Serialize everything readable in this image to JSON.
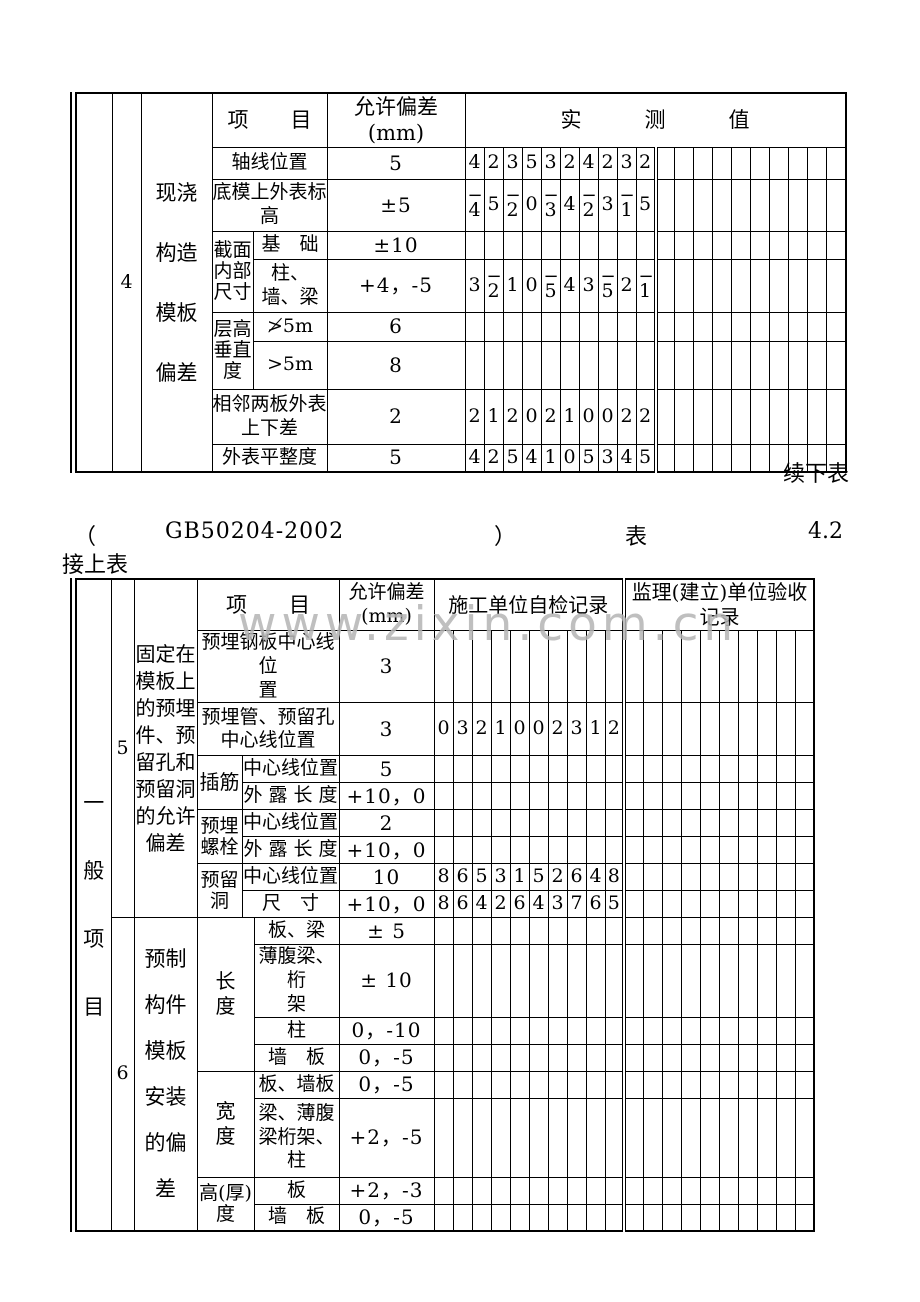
{
  "watermark": "www.zixin.com.cn",
  "between": {
    "continue_below": "续下表",
    "bracket_open": "（",
    "standard": "GB50204-2002",
    "bracket_close": "）",
    "table_word": "表",
    "table_no": "4.2",
    "continue_above": "接上表"
  },
  "top_table": {
    "row_no": "4",
    "category_lines": [
      "现浇",
      "构造",
      "模板",
      "偏差"
    ],
    "header": {
      "item": "项　　目",
      "allow": "允许偏差(mm)",
      "measured": "实　　　测　　　值"
    },
    "rows": [
      {
        "label": "轴线位置",
        "allow": "5",
        "measured": [
          "4",
          "2",
          "3",
          "5",
          "3",
          "2",
          "4",
          "2",
          "3",
          "2"
        ]
      },
      {
        "label": [
          "底模上外表标",
          "高"
        ],
        "allow": "±5",
        "measured": [
          "-4",
          "5",
          "-2",
          "0",
          "-3",
          "4",
          "-2",
          "3",
          "-1",
          "5"
        ]
      },
      {
        "group": [
          "截面",
          "内部",
          "尺寸"
        ],
        "label": "基　础",
        "allow": "±10",
        "measured": []
      },
      {
        "label": "柱、墙、梁",
        "allow": "+4，-5",
        "measured": [
          "3",
          "-2",
          "1",
          "0",
          "-5",
          "4",
          "3",
          "-5",
          "2",
          "-1"
        ]
      },
      {
        "group": [
          "层高",
          "垂直",
          "度"
        ],
        "label": "≯5m",
        "allow": "6",
        "measured": []
      },
      {
        "label": ">5m",
        "allow": "8",
        "measured": []
      },
      {
        "label": [
          "相邻两板外表",
          "上下差"
        ],
        "allow": "2",
        "measured": [
          "2",
          "1",
          "2",
          "0",
          "2",
          "1",
          "0",
          "0",
          "2",
          "2"
        ]
      },
      {
        "label": "外表平整度",
        "allow": "5",
        "measured": [
          "4",
          "2",
          "5",
          "4",
          "1",
          "0",
          "5",
          "3",
          "4",
          "5"
        ]
      }
    ]
  },
  "bottom_table": {
    "side_label_chars": [
      "一",
      "般",
      "项",
      "目"
    ],
    "header": {
      "item": "项　　目",
      "allow": "允许偏差(mm)",
      "self": "施工单位自检记录",
      "supervisor": [
        "监理(建立)单位验收",
        "记录"
      ]
    },
    "sections": [
      {
        "no": "5",
        "category_lines": [
          "固定在",
          "模板上",
          "的预埋",
          "件、预",
          "留孔和",
          "预留洞",
          "的允许",
          "偏差"
        ],
        "rows": [
          {
            "item": [
              "预埋钢板中心线位",
              "置"
            ],
            "allow": "3",
            "self": []
          },
          {
            "item": [
              "预埋管、预留孔",
              "中心线位置"
            ],
            "allow": "3",
            "self": [
              "0",
              "3",
              "2",
              "1",
              "0",
              "0",
              "2",
              "3",
              "1",
              "2"
            ]
          },
          {
            "group": "插筋",
            "sub": "中心线位置",
            "allow": "5",
            "self": []
          },
          {
            "sub": "外 露 长 度",
            "allow": "+10，0",
            "self": []
          },
          {
            "group": [
              "预埋",
              "螺栓"
            ],
            "sub": "中心线位置",
            "allow": "2",
            "self": []
          },
          {
            "sub": "外 露 长 度",
            "allow": "+10，0",
            "self": []
          },
          {
            "group": [
              "预留",
              "洞"
            ],
            "sub": "中心线位置",
            "allow": "10",
            "self": [
              "8",
              "6",
              "5",
              "3",
              "1",
              "5",
              "2",
              "6",
              "4",
              "8"
            ]
          },
          {
            "sub": "尺　寸",
            "allow": "+10，0",
            "self": [
              "8",
              "6",
              "4",
              "2",
              "6",
              "4",
              "3",
              "7",
              "6",
              "5"
            ]
          }
        ]
      },
      {
        "no": "6",
        "category_lines": [
          "预制",
          "构件",
          "模板",
          "安装",
          "的偏",
          "差"
        ],
        "rows": [
          {
            "group": [
              "长",
              "度"
            ],
            "sub": "板、梁",
            "allow": "± 5",
            "self": []
          },
          {
            "sub": [
              "薄腹梁、桁",
              "架"
            ],
            "allow": "± 10",
            "self": []
          },
          {
            "sub": "柱",
            "allow": "0，-10",
            "self": []
          },
          {
            "sub": "墙　板",
            "allow": "0，-5",
            "self": []
          },
          {
            "group": [
              "宽",
              "度"
            ],
            "sub": "板、墙板",
            "allow": "0，-5",
            "self": []
          },
          {
            "sub": [
              "梁、薄腹",
              "梁桁架、",
              "柱"
            ],
            "allow": "+2，-5",
            "self": []
          },
          {
            "group": [
              "高(厚)",
              "度"
            ],
            "sub": "板",
            "allow": "+2，-3",
            "self": []
          },
          {
            "sub": "墙　板",
            "allow": "0，-5",
            "self": []
          }
        ]
      }
    ]
  }
}
